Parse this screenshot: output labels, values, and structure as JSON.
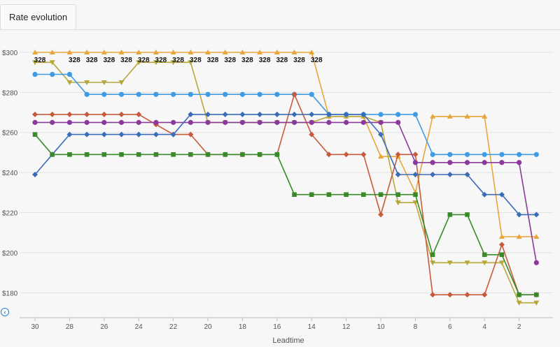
{
  "tabs": [
    {
      "label": "Rate evolution"
    }
  ],
  "nav": {
    "icon": "chevron-left-icon"
  },
  "chart_data": {
    "type": "line",
    "xlabel": "Leadtime",
    "ylabel": "",
    "x_reversed": true,
    "xlim": [
      31,
      1
    ],
    "ylim": [
      170,
      308
    ],
    "x_ticks": [
      30,
      28,
      26,
      24,
      22,
      20,
      18,
      16,
      14,
      12,
      10,
      8,
      6,
      4,
      2
    ],
    "y_ticks": [
      180,
      200,
      220,
      240,
      260,
      280,
      300
    ],
    "y_tick_labels": [
      "$180",
      "$200",
      "$220",
      "$240",
      "$260",
      "$280",
      "$300"
    ],
    "x": [
      30,
      29,
      28,
      27,
      26,
      25,
      24,
      23,
      22,
      21,
      20,
      19,
      18,
      17,
      16,
      15,
      14,
      13,
      12,
      11,
      10,
      9,
      8,
      7,
      6,
      5,
      4,
      3,
      2,
      1
    ],
    "annotations": {
      "value": "328",
      "x": [
        30,
        28,
        27,
        26,
        25,
        24,
        23,
        22,
        21,
        20,
        19,
        18,
        17,
        16,
        15,
        14
      ]
    },
    "series": [
      {
        "color": "#e8a53a",
        "marker": "triangle-up",
        "values": [
          300,
          300,
          300,
          300,
          300,
          300,
          300,
          300,
          300,
          300,
          300,
          300,
          300,
          300,
          300,
          300,
          300,
          268,
          268,
          268,
          248,
          248,
          230,
          268,
          268,
          268,
          268,
          208,
          208,
          208
        ]
      },
      {
        "color": "#b6a83a",
        "marker": "triangle-down",
        "values": [
          295,
          295,
          285,
          285,
          285,
          285,
          295,
          295,
          295,
          295,
          265,
          265,
          265,
          265,
          265,
          265,
          265,
          268,
          268,
          268,
          265,
          225,
          225,
          195,
          195,
          195,
          195,
          195,
          175,
          175
        ]
      },
      {
        "color": "#3f9be4",
        "marker": "circle",
        "values": [
          289,
          289,
          289,
          279,
          279,
          279,
          279,
          279,
          279,
          279,
          279,
          279,
          279,
          279,
          279,
          279,
          279,
          269,
          269,
          269,
          269,
          269,
          269,
          249,
          249,
          249,
          249,
          249,
          249,
          249
        ]
      },
      {
        "color": "#c85a3c",
        "marker": "diamond",
        "values": [
          269,
          269,
          269,
          269,
          269,
          269,
          269,
          264,
          259,
          259,
          249,
          249,
          249,
          249,
          249,
          279,
          259,
          249,
          249,
          249,
          219,
          249,
          249,
          179,
          179,
          179,
          179,
          204,
          179,
          179
        ]
      },
      {
        "color": "#8b3a9c",
        "marker": "circle",
        "values": [
          265,
          265,
          265,
          265,
          265,
          265,
          265,
          265,
          265,
          265,
          265,
          265,
          265,
          265,
          265,
          265,
          265,
          265,
          265,
          265,
          265,
          265,
          245,
          245,
          245,
          245,
          245,
          245,
          245,
          195
        ]
      },
      {
        "color": "#3a6cb8",
        "marker": "diamond",
        "values": [
          239,
          249,
          259,
          259,
          259,
          259,
          259,
          259,
          259,
          269,
          269,
          269,
          269,
          269,
          269,
          269,
          269,
          269,
          269,
          269,
          259,
          239,
          239,
          239,
          239,
          239,
          229,
          229,
          219,
          219
        ]
      },
      {
        "color": "#3a8a2a",
        "marker": "square",
        "values": [
          259,
          249,
          249,
          249,
          249,
          249,
          249,
          249,
          249,
          249,
          249,
          249,
          249,
          249,
          249,
          229,
          229,
          229,
          229,
          229,
          229,
          229,
          229,
          199,
          219,
          219,
          199,
          199,
          179,
          179
        ]
      }
    ]
  }
}
